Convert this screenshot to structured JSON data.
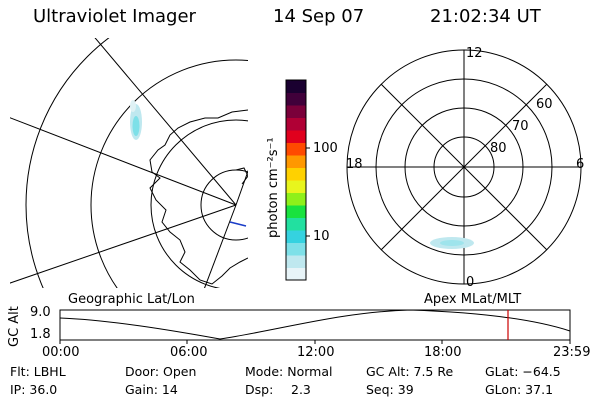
{
  "header": {
    "instrument": "Ultraviolet Imager",
    "date": "14 Sep 07",
    "time": "21:02:34 UT"
  },
  "left_panel": {
    "caption": "Geographic Lat/Lon"
  },
  "right_panel": {
    "caption": "Apex MLat/MLT",
    "mlt_labels": {
      "top": "12",
      "left": "18",
      "right": "6",
      "bottom": "0"
    },
    "mlat_labels": [
      "60",
      "70",
      "80"
    ]
  },
  "colorbar": {
    "unit_label": "photon cm⁻²s⁻¹",
    "scale": "log",
    "ticks": [
      "100",
      "10"
    ],
    "colors": [
      "#e8f4f8",
      "#bfe8ef",
      "#7ee0e8",
      "#35d2e0",
      "#22e0a0",
      "#19e23f",
      "#8ff01a",
      "#e8f51d",
      "#ffd100",
      "#ff9800",
      "#ff4a00",
      "#e0001d",
      "#b00035",
      "#7a003a",
      "#40003a",
      "#1a0030"
    ]
  },
  "altitude_plot": {
    "ylabel": "GC Alt",
    "ymax": "9.0",
    "ymin": "1.8",
    "x_ticks": [
      "00:00",
      "06:00",
      "12:00",
      "18:00",
      "23:59"
    ],
    "current_marker_color": "#cc0000"
  },
  "info": {
    "filter": "Flt: LBHL",
    "door": "Door: Open",
    "mode": "Mode: Normal",
    "gc_alt": "GC Alt: 7.5 Re",
    "glat": "GLat: −64.5",
    "ip": "IP: 36.0",
    "gain": "Gain: 14",
    "dsp_label": "Dsp:",
    "dsp_value": "2.3",
    "seq": "Seq: 39",
    "glon": "GLon: 37.1"
  }
}
